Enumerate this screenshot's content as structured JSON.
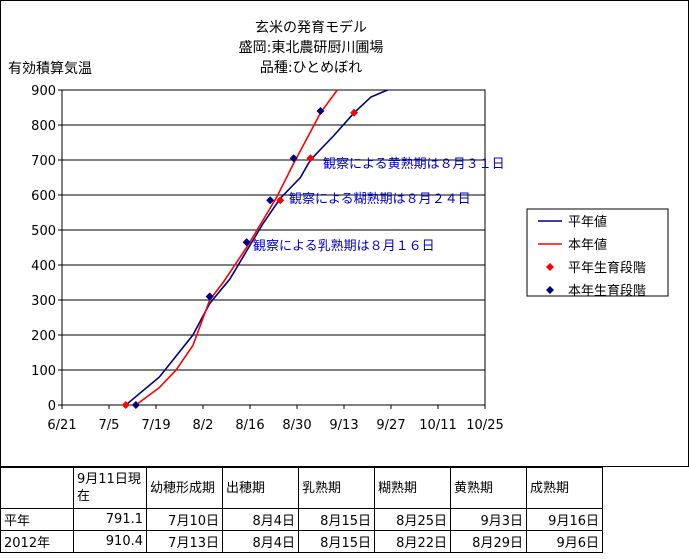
{
  "chart_data": {
    "type": "line",
    "title_lines": [
      "玄米の発育モデル",
      "盛岡:東北農研厨川圃場",
      "品種:ひとめぼれ"
    ],
    "ylabel": "有効積算気温",
    "xlabel": "",
    "ylim": [
      0,
      900
    ],
    "yticks": [
      0,
      100,
      200,
      300,
      400,
      500,
      600,
      700,
      800,
      900
    ],
    "xticks": [
      "6/21",
      "7/5",
      "7/19",
      "8/2",
      "8/16",
      "8/30",
      "9/13",
      "9/27",
      "10/11",
      "10/25"
    ],
    "xlim": [
      "6/21",
      "10/25"
    ],
    "grid": "horizontal",
    "legend_position": "right",
    "legend": [
      "平年値",
      "本年値",
      "平年生育段階",
      "本年生育段階"
    ],
    "series": [
      {
        "name": "平年値",
        "kind": "line",
        "color": "#000080",
        "points": [
          [
            "7/10",
            0
          ],
          [
            "7/20",
            80
          ],
          [
            "7/30",
            200
          ],
          [
            "8/4",
            290
          ],
          [
            "8/10",
            360
          ],
          [
            "8/15",
            440
          ],
          [
            "8/20",
            520
          ],
          [
            "8/25",
            590
          ],
          [
            "8/31",
            650
          ],
          [
            "9/3",
            700
          ],
          [
            "9/10",
            770
          ],
          [
            "9/16",
            835
          ],
          [
            "9/21",
            880
          ],
          [
            "9/26",
            900
          ]
        ]
      },
      {
        "name": "本年値",
        "kind": "line",
        "color": "#ff0000",
        "points": [
          [
            "7/13",
            0
          ],
          [
            "7/20",
            50
          ],
          [
            "7/25",
            100
          ],
          [
            "7/30",
            170
          ],
          [
            "8/4",
            300
          ],
          [
            "8/8",
            350
          ],
          [
            "8/15",
            450
          ],
          [
            "8/20",
            530
          ],
          [
            "8/24",
            595
          ],
          [
            "8/29",
            690
          ],
          [
            "9/3",
            780
          ],
          [
            "9/6",
            835
          ],
          [
            "9/11",
            900
          ]
        ]
      },
      {
        "name": "平年生育段階",
        "kind": "marker",
        "color": "#ff0000",
        "points": [
          [
            "7/10",
            0
          ],
          [
            "8/4",
            310
          ],
          [
            "8/15",
            465
          ],
          [
            "8/25",
            585
          ],
          [
            "9/3",
            705
          ],
          [
            "9/16",
            835
          ]
        ]
      },
      {
        "name": "本年生育段階",
        "kind": "marker",
        "color": "#000080",
        "points": [
          [
            "7/13",
            0
          ],
          [
            "8/4",
            310
          ],
          [
            "8/15",
            465
          ],
          [
            "8/22",
            585
          ],
          [
            "8/29",
            705
          ],
          [
            "9/6",
            840
          ]
        ]
      }
    ],
    "annotations": [
      {
        "text": "観察による乳熟期は８月１６日",
        "color": "#0000cc"
      },
      {
        "text": "観察による糊熟期は８月２４日",
        "color": "#0000cc"
      },
      {
        "text": "観察による黄熟期は８月３１日",
        "color": "#0000cc"
      }
    ]
  },
  "table": {
    "headers": [
      "",
      "9月11日現在",
      "幼穂形成期",
      "出穂期",
      "乳熟期",
      "糊熟期",
      "黄熟期",
      "成熟期"
    ],
    "rows": [
      [
        "平年",
        "791.1",
        "7月10日",
        "8月4日",
        "8月15日",
        "8月25日",
        "9月3日",
        "9月16日"
      ],
      [
        "2012年",
        "910.4",
        "7月13日",
        "8月4日",
        "8月15日",
        "8月22日",
        "8月29日",
        "9月6日"
      ]
    ]
  }
}
